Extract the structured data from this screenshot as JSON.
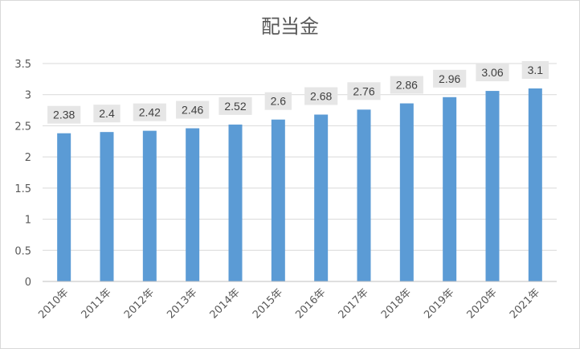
{
  "chart_data": {
    "type": "bar",
    "title": "配当金",
    "categories": [
      "2010年",
      "2011年",
      "2012年",
      "2013年",
      "2014年",
      "2015年",
      "2016年",
      "2017年",
      "2018年",
      "2019年",
      "2020年",
      "2021年"
    ],
    "values": [
      2.38,
      2.4,
      2.42,
      2.46,
      2.52,
      2.6,
      2.68,
      2.76,
      2.86,
      2.96,
      3.06,
      3.1
    ],
    "data_labels": [
      "2.38",
      "2.4",
      "2.42",
      "2.46",
      "2.52",
      "2.6",
      "2.68",
      "2.76",
      "2.86",
      "2.96",
      "3.06",
      "3.1"
    ],
    "y_ticks": [
      0,
      0.5,
      1,
      1.5,
      2,
      2.5,
      3,
      3.5
    ],
    "y_tick_labels": [
      "0",
      "0.5",
      "1",
      "1.5",
      "2",
      "2.5",
      "3",
      "3.5"
    ],
    "ylim": [
      0,
      3.5
    ],
    "xlabel": "",
    "ylabel": "",
    "grid": true,
    "legend": "none",
    "colors": {
      "bar": "#5b9bd5",
      "label_box": "#e6e6e6",
      "text": "#595959",
      "grid": "#d9d9d9"
    }
  }
}
